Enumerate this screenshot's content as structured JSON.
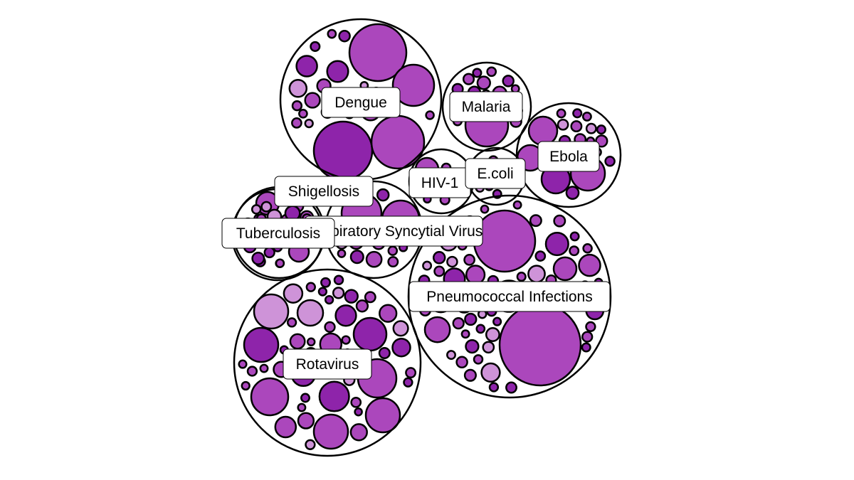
{
  "chart_data": {
    "type": "circle-packing",
    "title": "",
    "colors": {
      "dark": "#8e24aa",
      "medium": "#ab47bc",
      "light": "#ce93d8",
      "stroke": "#000000",
      "label_bg": "#ffffff"
    },
    "groups": [
      {
        "name": "Dengue",
        "label": "Dengue",
        "major_leaves": 4,
        "minor_leaves": 22
      },
      {
        "name": "Malaria",
        "label": "Malaria",
        "major_leaves": 1,
        "minor_leaves": 20
      },
      {
        "name": "Ebola",
        "label": "Ebola",
        "major_leaves": 4,
        "minor_leaves": 16
      },
      {
        "name": "HIV-1",
        "label": "HIV-1",
        "major_leaves": 1,
        "minor_leaves": 8
      },
      {
        "name": "E.coli",
        "label": "E.coli",
        "major_leaves": 0,
        "minor_leaves": 10
      },
      {
        "name": "Shigellosis",
        "label": "Shigellosis",
        "major_leaves": 1,
        "minor_leaves": 14
      },
      {
        "name": "Respiratory Syncytial Virus",
        "label": "Respiratory Syncytial Virus",
        "major_leaves": 2,
        "minor_leaves": 22
      },
      {
        "name": "Tuberculosis",
        "label": "Tuberculosis",
        "major_leaves": 1,
        "minor_leaves": 16
      },
      {
        "name": "Pneumococcal Infections",
        "label": "Pneumococcal Infections",
        "major_leaves": 2,
        "minor_leaves": 90
      },
      {
        "name": "Rotavirus",
        "label": "Rotavirus",
        "major_leaves": 8,
        "minor_leaves": 45
      }
    ]
  }
}
